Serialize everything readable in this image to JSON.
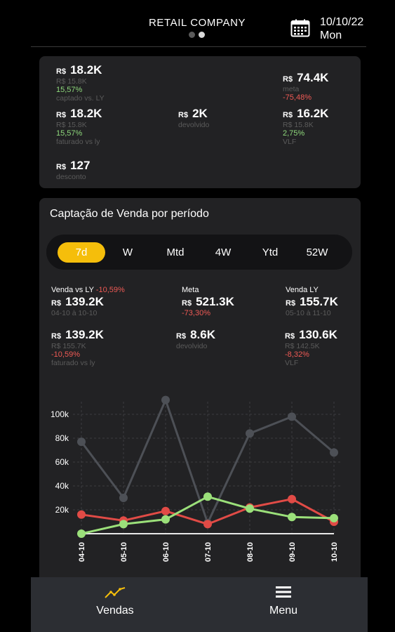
{
  "header": {
    "company": "RETAIL COMPANY",
    "date": "10/10/22",
    "weekday": "Mon"
  },
  "summary": {
    "captado": {
      "currency": "R$",
      "value": "18.2K",
      "ly_value": "R$ 15.8K",
      "change": "15,57%",
      "label": "captado vs. LY"
    },
    "faturado": {
      "currency": "R$",
      "value": "18.2K",
      "ly_value": "R$ 15.8K",
      "change": "15,57%",
      "label": "faturado vs ly"
    },
    "desconto": {
      "currency": "R$",
      "value": "127",
      "label": "desconto"
    },
    "devolvido": {
      "currency": "R$",
      "value": "2K",
      "label": "devolvido"
    },
    "meta": {
      "currency": "R$",
      "value": "74.4K",
      "label": "meta",
      "change": "-75,48%"
    },
    "vlf": {
      "currency": "R$",
      "value": "16.2K",
      "ly_value": "R$ 15.8K",
      "change": "2,75%",
      "label": "VLF"
    }
  },
  "period": {
    "title": "Captação de Venda por período",
    "tabs": [
      "7d",
      "W",
      "Mtd",
      "4W",
      "Ytd",
      "52W"
    ],
    "active": "7d",
    "venda_vs_ly": {
      "head": "Venda vs LY",
      "head_change": "-10,59%",
      "currency": "R$",
      "value": "139.2K",
      "range": "04-10 à 10-10"
    },
    "meta": {
      "head": "Meta",
      "currency": "R$",
      "value": "521.3K",
      "change": "-73,30%"
    },
    "venda_ly": {
      "head": "Venda LY",
      "currency": "R$",
      "value": "155.7K",
      "range": "05-10 à 11-10"
    },
    "faturado": {
      "currency": "R$",
      "value": "139.2K",
      "ly_value": "R$ 155.7K",
      "change": "-10,59%",
      "label": "faturado vs ly"
    },
    "devolvido": {
      "currency": "R$",
      "value": "8.6K",
      "label": "devolvido"
    },
    "vlf": {
      "currency": "R$",
      "value": "130.6K",
      "ly_value": "R$ 142.5K",
      "change": "-8,32%",
      "label": "VLF"
    }
  },
  "chart_data": {
    "type": "line",
    "categories": [
      "04-10",
      "05-10",
      "06-10",
      "07-10",
      "08-10",
      "09-10",
      "10-10"
    ],
    "y_ticks": [
      "20k",
      "40k",
      "60k",
      "80k",
      "100k"
    ],
    "ylim": [
      0,
      120000
    ],
    "grid": true,
    "series": [
      {
        "color": "#4d5056",
        "values": [
          77000,
          30000,
          112000,
          9000,
          84000,
          98000,
          68000
        ]
      },
      {
        "color": "#e14b46",
        "values": [
          16000,
          11000,
          19000,
          8000,
          22000,
          29000,
          10000
        ]
      },
      {
        "color": "#9be07a",
        "values": [
          0,
          8000,
          12000,
          31000,
          21000,
          14000,
          13000
        ]
      }
    ],
    "baseline_color": "#e8e8e8"
  },
  "nav": {
    "vendas": "Vendas",
    "menu": "Menu"
  },
  "colors": {
    "accent": "#f5be0b",
    "positive": "#8fd97c",
    "negative": "#ef5a55",
    "card": "#222224"
  }
}
